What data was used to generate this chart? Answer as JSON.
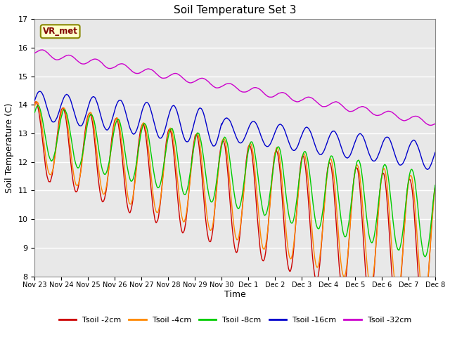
{
  "title": "Soil Temperature Set 3",
  "xlabel": "Time",
  "ylabel": "Soil Temperature (C)",
  "ylim": [
    8.0,
    17.0
  ],
  "yticks": [
    8.0,
    9.0,
    10.0,
    11.0,
    12.0,
    13.0,
    14.0,
    15.0,
    16.0,
    17.0
  ],
  "colors": {
    "Tsoil -2cm": "#cc0000",
    "Tsoil -4cm": "#ff8800",
    "Tsoil -8cm": "#00cc00",
    "Tsoil -16cm": "#0000cc",
    "Tsoil -32cm": "#cc00cc"
  },
  "legend_label": "VR_met",
  "background_color": "#ffffff",
  "plot_bg_color": "#e8e8e8",
  "grid_color": "#ffffff",
  "num_points": 1440,
  "num_days": 15
}
